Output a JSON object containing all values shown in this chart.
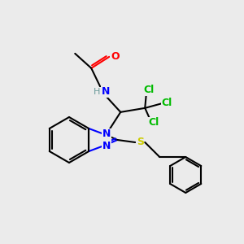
{
  "background_color": "#ebebeb",
  "atom_colors": {
    "C": "#000000",
    "N": "#0000ff",
    "O": "#ff0000",
    "S": "#cccc00",
    "Cl": "#00bb00",
    "H": "#6a9a9a"
  },
  "lw": 1.5,
  "fs": 9,
  "figsize": [
    3.0,
    3.0
  ],
  "dpi": 100
}
